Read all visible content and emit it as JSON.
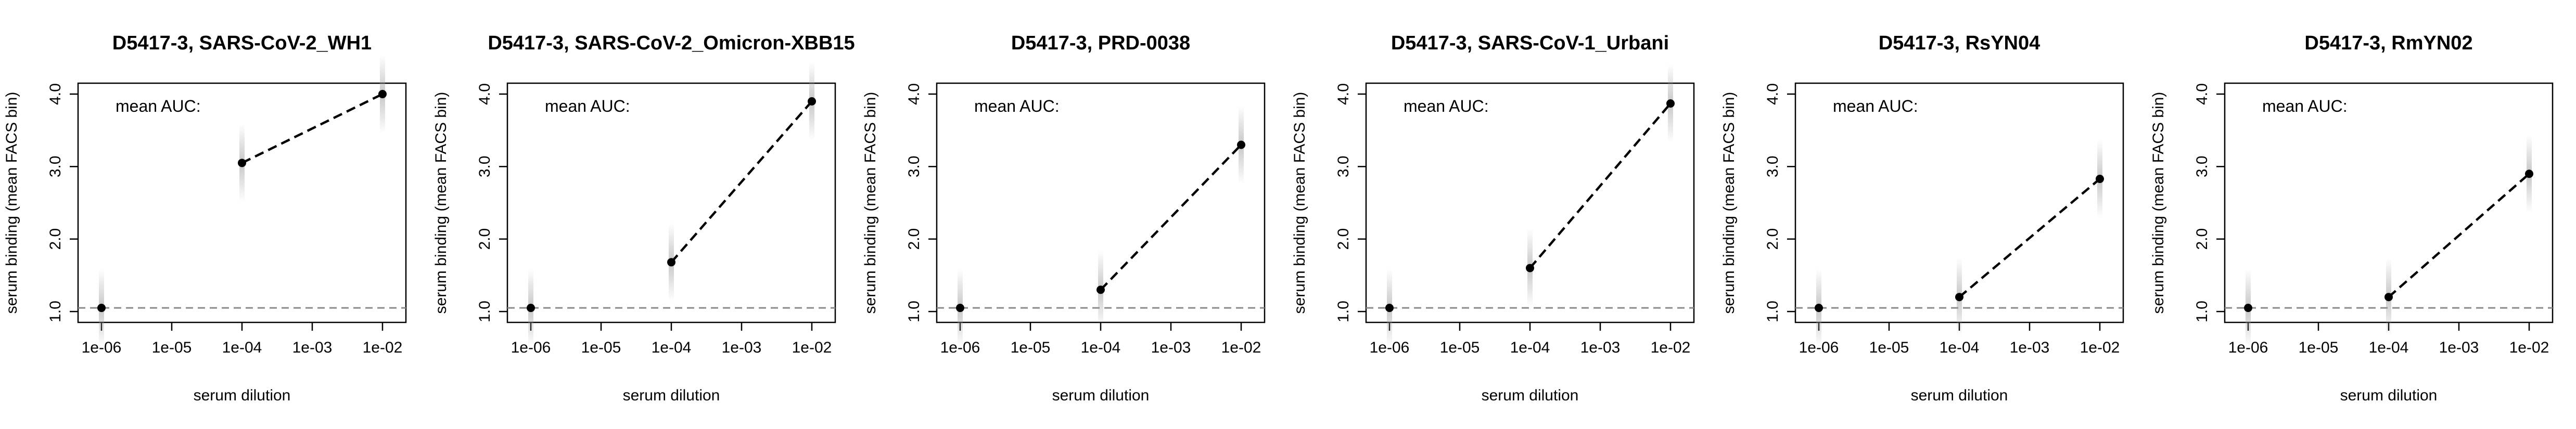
{
  "chart_data": [
    {
      "type": "line",
      "title": "D5417-3, SARS-CoV-2_WH1",
      "xlabel": "serum dilution",
      "ylabel": "serum binding (mean FACS bin)",
      "annotation": "mean AUC:",
      "x_scale": "log",
      "x": [
        "1e-06",
        "1e-04",
        "1e-02"
      ],
      "xticks": [
        "1e-06",
        "1e-05",
        "1e-04",
        "1e-03",
        "1e-02"
      ],
      "yticks": [
        "1.0",
        "2.0",
        "3.0",
        "4.0"
      ],
      "ylim": [
        0.85,
        4.15
      ],
      "baseline": 1.05,
      "series": [
        {
          "values": [
            1.05,
            3.05,
            4.0
          ]
        }
      ]
    },
    {
      "type": "line",
      "title": "D5417-3, SARS-CoV-2_Omicron-XBB15",
      "xlabel": "serum dilution",
      "ylabel": "serum binding (mean FACS bin)",
      "annotation": "mean AUC:",
      "x_scale": "log",
      "x": [
        "1e-06",
        "1e-04",
        "1e-02"
      ],
      "xticks": [
        "1e-06",
        "1e-05",
        "1e-04",
        "1e-03",
        "1e-02"
      ],
      "yticks": [
        "1.0",
        "2.0",
        "3.0",
        "4.0"
      ],
      "ylim": [
        0.85,
        4.15
      ],
      "baseline": 1.05,
      "series": [
        {
          "values": [
            1.05,
            1.68,
            3.9
          ]
        }
      ]
    },
    {
      "type": "line",
      "title": "D5417-3, PRD-0038",
      "xlabel": "serum dilution",
      "ylabel": "serum binding (mean FACS bin)",
      "annotation": "mean AUC:",
      "x_scale": "log",
      "x": [
        "1e-06",
        "1e-04",
        "1e-02"
      ],
      "xticks": [
        "1e-06",
        "1e-05",
        "1e-04",
        "1e-03",
        "1e-02"
      ],
      "yticks": [
        "1.0",
        "2.0",
        "3.0",
        "4.0"
      ],
      "ylim": [
        0.85,
        4.15
      ],
      "baseline": 1.05,
      "series": [
        {
          "values": [
            1.05,
            1.3,
            3.3
          ]
        }
      ]
    },
    {
      "type": "line",
      "title": "D5417-3, SARS-CoV-1_Urbani",
      "xlabel": "serum dilution",
      "ylabel": "serum binding (mean FACS bin)",
      "annotation": "mean AUC:",
      "x_scale": "log",
      "x": [
        "1e-06",
        "1e-04",
        "1e-02"
      ],
      "xticks": [
        "1e-06",
        "1e-05",
        "1e-04",
        "1e-03",
        "1e-02"
      ],
      "yticks": [
        "1.0",
        "2.0",
        "3.0",
        "4.0"
      ],
      "ylim": [
        0.85,
        4.15
      ],
      "baseline": 1.05,
      "series": [
        {
          "values": [
            1.05,
            1.6,
            3.87
          ]
        }
      ]
    },
    {
      "type": "line",
      "title": "D5417-3, RsYN04",
      "xlabel": "serum dilution",
      "ylabel": "serum binding (mean FACS bin)",
      "annotation": "mean AUC:",
      "x_scale": "log",
      "x": [
        "1e-06",
        "1e-04",
        "1e-02"
      ],
      "xticks": [
        "1e-06",
        "1e-05",
        "1e-04",
        "1e-03",
        "1e-02"
      ],
      "yticks": [
        "1.0",
        "2.0",
        "3.0",
        "4.0"
      ],
      "ylim": [
        0.85,
        4.15
      ],
      "baseline": 1.05,
      "series": [
        {
          "values": [
            1.05,
            1.2,
            2.83
          ]
        }
      ]
    },
    {
      "type": "line",
      "title": "D5417-3, RmYN02",
      "xlabel": "serum dilution",
      "ylabel": "serum binding (mean FACS bin)",
      "annotation": "mean AUC:",
      "x_scale": "log",
      "x": [
        "1e-06",
        "1e-04",
        "1e-02"
      ],
      "xticks": [
        "1e-06",
        "1e-05",
        "1e-04",
        "1e-03",
        "1e-02"
      ],
      "yticks": [
        "1.0",
        "2.0",
        "3.0",
        "4.0"
      ],
      "ylim": [
        0.85,
        4.15
      ],
      "baseline": 1.05,
      "series": [
        {
          "values": [
            1.05,
            1.2,
            2.9
          ]
        }
      ]
    }
  ]
}
